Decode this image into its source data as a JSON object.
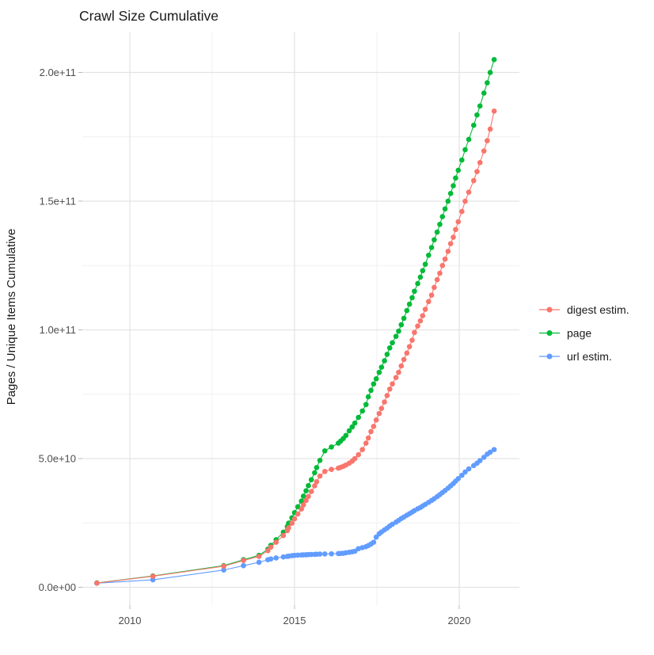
{
  "title": "Crawl Size Cumulative",
  "legend": {
    "items": [
      {
        "label": "digest estim.",
        "color": "#F8766D"
      },
      {
        "label": "page",
        "color": "#00BA38"
      },
      {
        "label": "url estim.",
        "color": "#619CFF"
      }
    ]
  },
  "colors": {
    "digest": "#F8766D",
    "page": "#00BA38",
    "url": "#619CFF",
    "grid_major": "#E3E3E3",
    "grid_minor": "#F0F0F0",
    "tick_mark": "#B8B8B8",
    "axis_text": "#4d4d4d",
    "title_text": "#1a1a1a",
    "background": "#ffffff"
  },
  "chart_data": {
    "type": "scatter",
    "title": "Crawl Size Cumulative",
    "xlabel": "",
    "ylabel": "Pages / Unique Items Cumulative",
    "grid": true,
    "legend_position": "right",
    "xlim": [
      2008.55,
      2021.85
    ],
    "ylim": [
      0,
      216000000000.0
    ],
    "values_unit": "1e9 pages (multiply listed series values by 1e9)",
    "axes": {
      "x_ticks": [
        {
          "value": 2010,
          "label": "2010"
        },
        {
          "value": 2015,
          "label": "2015"
        },
        {
          "value": 2020,
          "label": "2020"
        }
      ],
      "y_ticks": [
        {
          "value": 0,
          "label": "0.0e+00"
        },
        {
          "value": 50,
          "label": "5.0e+10"
        },
        {
          "value": 100,
          "label": "1.0e+11"
        },
        {
          "value": 150,
          "label": "1.5e+11"
        },
        {
          "value": 200,
          "label": "2.0e+11"
        }
      ],
      "x_minor": [
        2012.5,
        2017.5
      ],
      "y_minor": [
        25,
        75,
        125,
        175
      ]
    },
    "x": [
      2009.0,
      2010.7,
      2012.85,
      2013.45,
      2013.92,
      2014.19,
      2014.28,
      2014.44,
      2014.66,
      2014.78,
      2014.82,
      2014.92,
      2015.0,
      2015.1,
      2015.21,
      2015.27,
      2015.35,
      2015.42,
      2015.51,
      2015.61,
      2015.67,
      2015.77,
      2015.92,
      2016.12,
      2016.33,
      2016.4,
      2016.48,
      2016.56,
      2016.66,
      2016.75,
      2016.83,
      2016.94,
      2017.06,
      2017.17,
      2017.24,
      2017.32,
      2017.4,
      2017.48,
      2017.57,
      2017.64,
      2017.73,
      2017.81,
      2017.89,
      2017.97,
      2018.08,
      2018.16,
      2018.24,
      2018.32,
      2018.41,
      2018.49,
      2018.57,
      2018.64,
      2018.74,
      2018.82,
      2018.89,
      2018.97,
      2019.07,
      2019.16,
      2019.24,
      2019.33,
      2019.41,
      2019.49,
      2019.57,
      2019.66,
      2019.74,
      2019.82,
      2019.89,
      2019.97,
      2020.08,
      2020.18,
      2020.29,
      2020.44,
      2020.54,
      2020.63,
      2020.75,
      2020.85,
      2020.94,
      2021.06
    ],
    "series": [
      {
        "name": "digest estim.",
        "color": "#F8766D",
        "values": [
          1.65,
          4.3,
          8.2,
          10.4,
          12.0,
          14.2,
          15.6,
          17.5,
          20.1,
          22.0,
          23.1,
          24.9,
          26.6,
          28.5,
          30.4,
          32.0,
          33.7,
          35.3,
          37.2,
          39.4,
          41.0,
          43.2,
          45.0,
          45.8,
          46.3,
          46.6,
          47.0,
          47.5,
          48.2,
          49.0,
          50.0,
          51.5,
          53.5,
          56.0,
          58.0,
          60.5,
          62.5,
          65.0,
          67.5,
          69.5,
          72.0,
          74.5,
          77.0,
          79.0,
          81.5,
          83.5,
          86.0,
          88.5,
          91.0,
          93.5,
          96.0,
          99.0,
          101.5,
          103.5,
          105.5,
          108.0,
          111.0,
          113.5,
          116.5,
          119.5,
          122.0,
          125.0,
          127.5,
          130.5,
          133.5,
          136.0,
          139.0,
          142.0,
          146.0,
          150.0,
          153.5,
          158.0,
          161.5,
          165.0,
          169.5,
          173.5,
          178.0,
          185.0
        ]
      },
      {
        "name": "page",
        "color": "#00BA38",
        "values": [
          1.7,
          4.4,
          8.4,
          10.7,
          12.4,
          14.8,
          16.3,
          18.5,
          21.4,
          23.6,
          24.9,
          27.0,
          29.0,
          31.3,
          33.5,
          35.4,
          37.5,
          39.5,
          41.8,
          44.5,
          46.5,
          49.3,
          53.0,
          54.5,
          56.0,
          56.8,
          57.8,
          59.0,
          60.8,
          62.3,
          63.8,
          66.0,
          68.5,
          71.0,
          74.0,
          76.5,
          79.0,
          81.0,
          83.5,
          85.5,
          88.0,
          90.5,
          93.0,
          95.0,
          97.5,
          99.5,
          102.0,
          104.5,
          107.5,
          110.0,
          112.5,
          115.0,
          118.0,
          120.5,
          123.0,
          125.5,
          129.0,
          132.0,
          135.0,
          138.0,
          141.0,
          144.0,
          147.0,
          150.0,
          153.0,
          156.0,
          159.0,
          162.0,
          166.0,
          170.0,
          174.0,
          179.5,
          183.5,
          187.0,
          192.0,
          196.0,
          200.0,
          205.0
        ]
      },
      {
        "name": "url estim.",
        "color": "#619CFF",
        "values": [
          1.6,
          2.9,
          6.7,
          8.4,
          9.7,
          10.7,
          11.0,
          11.4,
          11.8,
          12.0,
          12.1,
          12.3,
          12.4,
          12.5,
          12.55,
          12.6,
          12.65,
          12.7,
          12.75,
          12.8,
          12.85,
          12.9,
          12.95,
          13.0,
          13.1,
          13.15,
          13.2,
          13.4,
          13.6,
          13.8,
          14.0,
          15.0,
          15.4,
          15.8,
          16.2,
          16.8,
          17.5,
          19.5,
          20.8,
          21.5,
          22.3,
          23.0,
          23.8,
          24.5,
          25.3,
          26.0,
          26.7,
          27.3,
          28.0,
          28.6,
          29.2,
          29.8,
          30.5,
          31.0,
          31.6,
          32.2,
          33.0,
          33.7,
          34.4,
          35.2,
          36.0,
          36.8,
          37.6,
          38.5,
          39.4,
          40.3,
          41.2,
          42.2,
          43.5,
          44.8,
          46.0,
          47.3,
          48.2,
          49.2,
          50.5,
          51.7,
          52.5,
          53.5
        ]
      }
    ]
  }
}
